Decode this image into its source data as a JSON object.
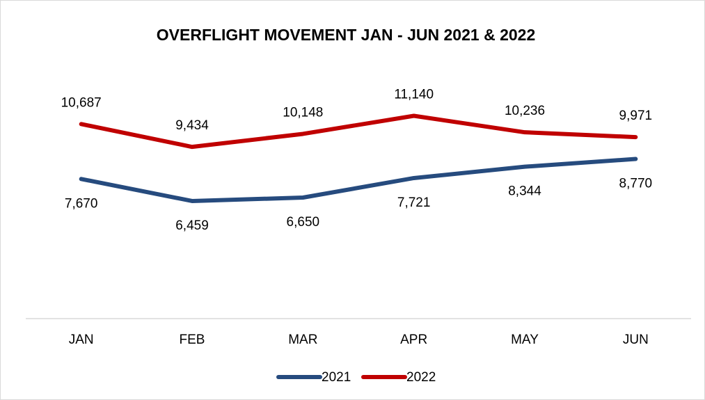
{
  "chart_data": {
    "type": "line",
    "title": "OVERFLIGHT MOVEMENT JAN - JUN 2021 & 2022",
    "categories": [
      "JAN",
      "FEB",
      "MAR",
      "APR",
      "MAY",
      "JUN"
    ],
    "series": [
      {
        "name": "2021",
        "color": "#264b7e",
        "values": [
          7670,
          6459,
          6650,
          7721,
          8344,
          8770
        ],
        "value_labels": [
          "7,670",
          "6,459",
          "6,650",
          "7,721",
          "8,344",
          "8,770"
        ]
      },
      {
        "name": "2022",
        "color": "#c00000",
        "values": [
          10687,
          9434,
          10148,
          11140,
          10236,
          9971
        ],
        "value_labels": [
          "10,687",
          "9,434",
          "10,148",
          "11,140",
          "10,236",
          "9,971"
        ]
      }
    ],
    "ylim": [
      0,
      12000
    ],
    "grid": false,
    "legend": "bottom"
  }
}
